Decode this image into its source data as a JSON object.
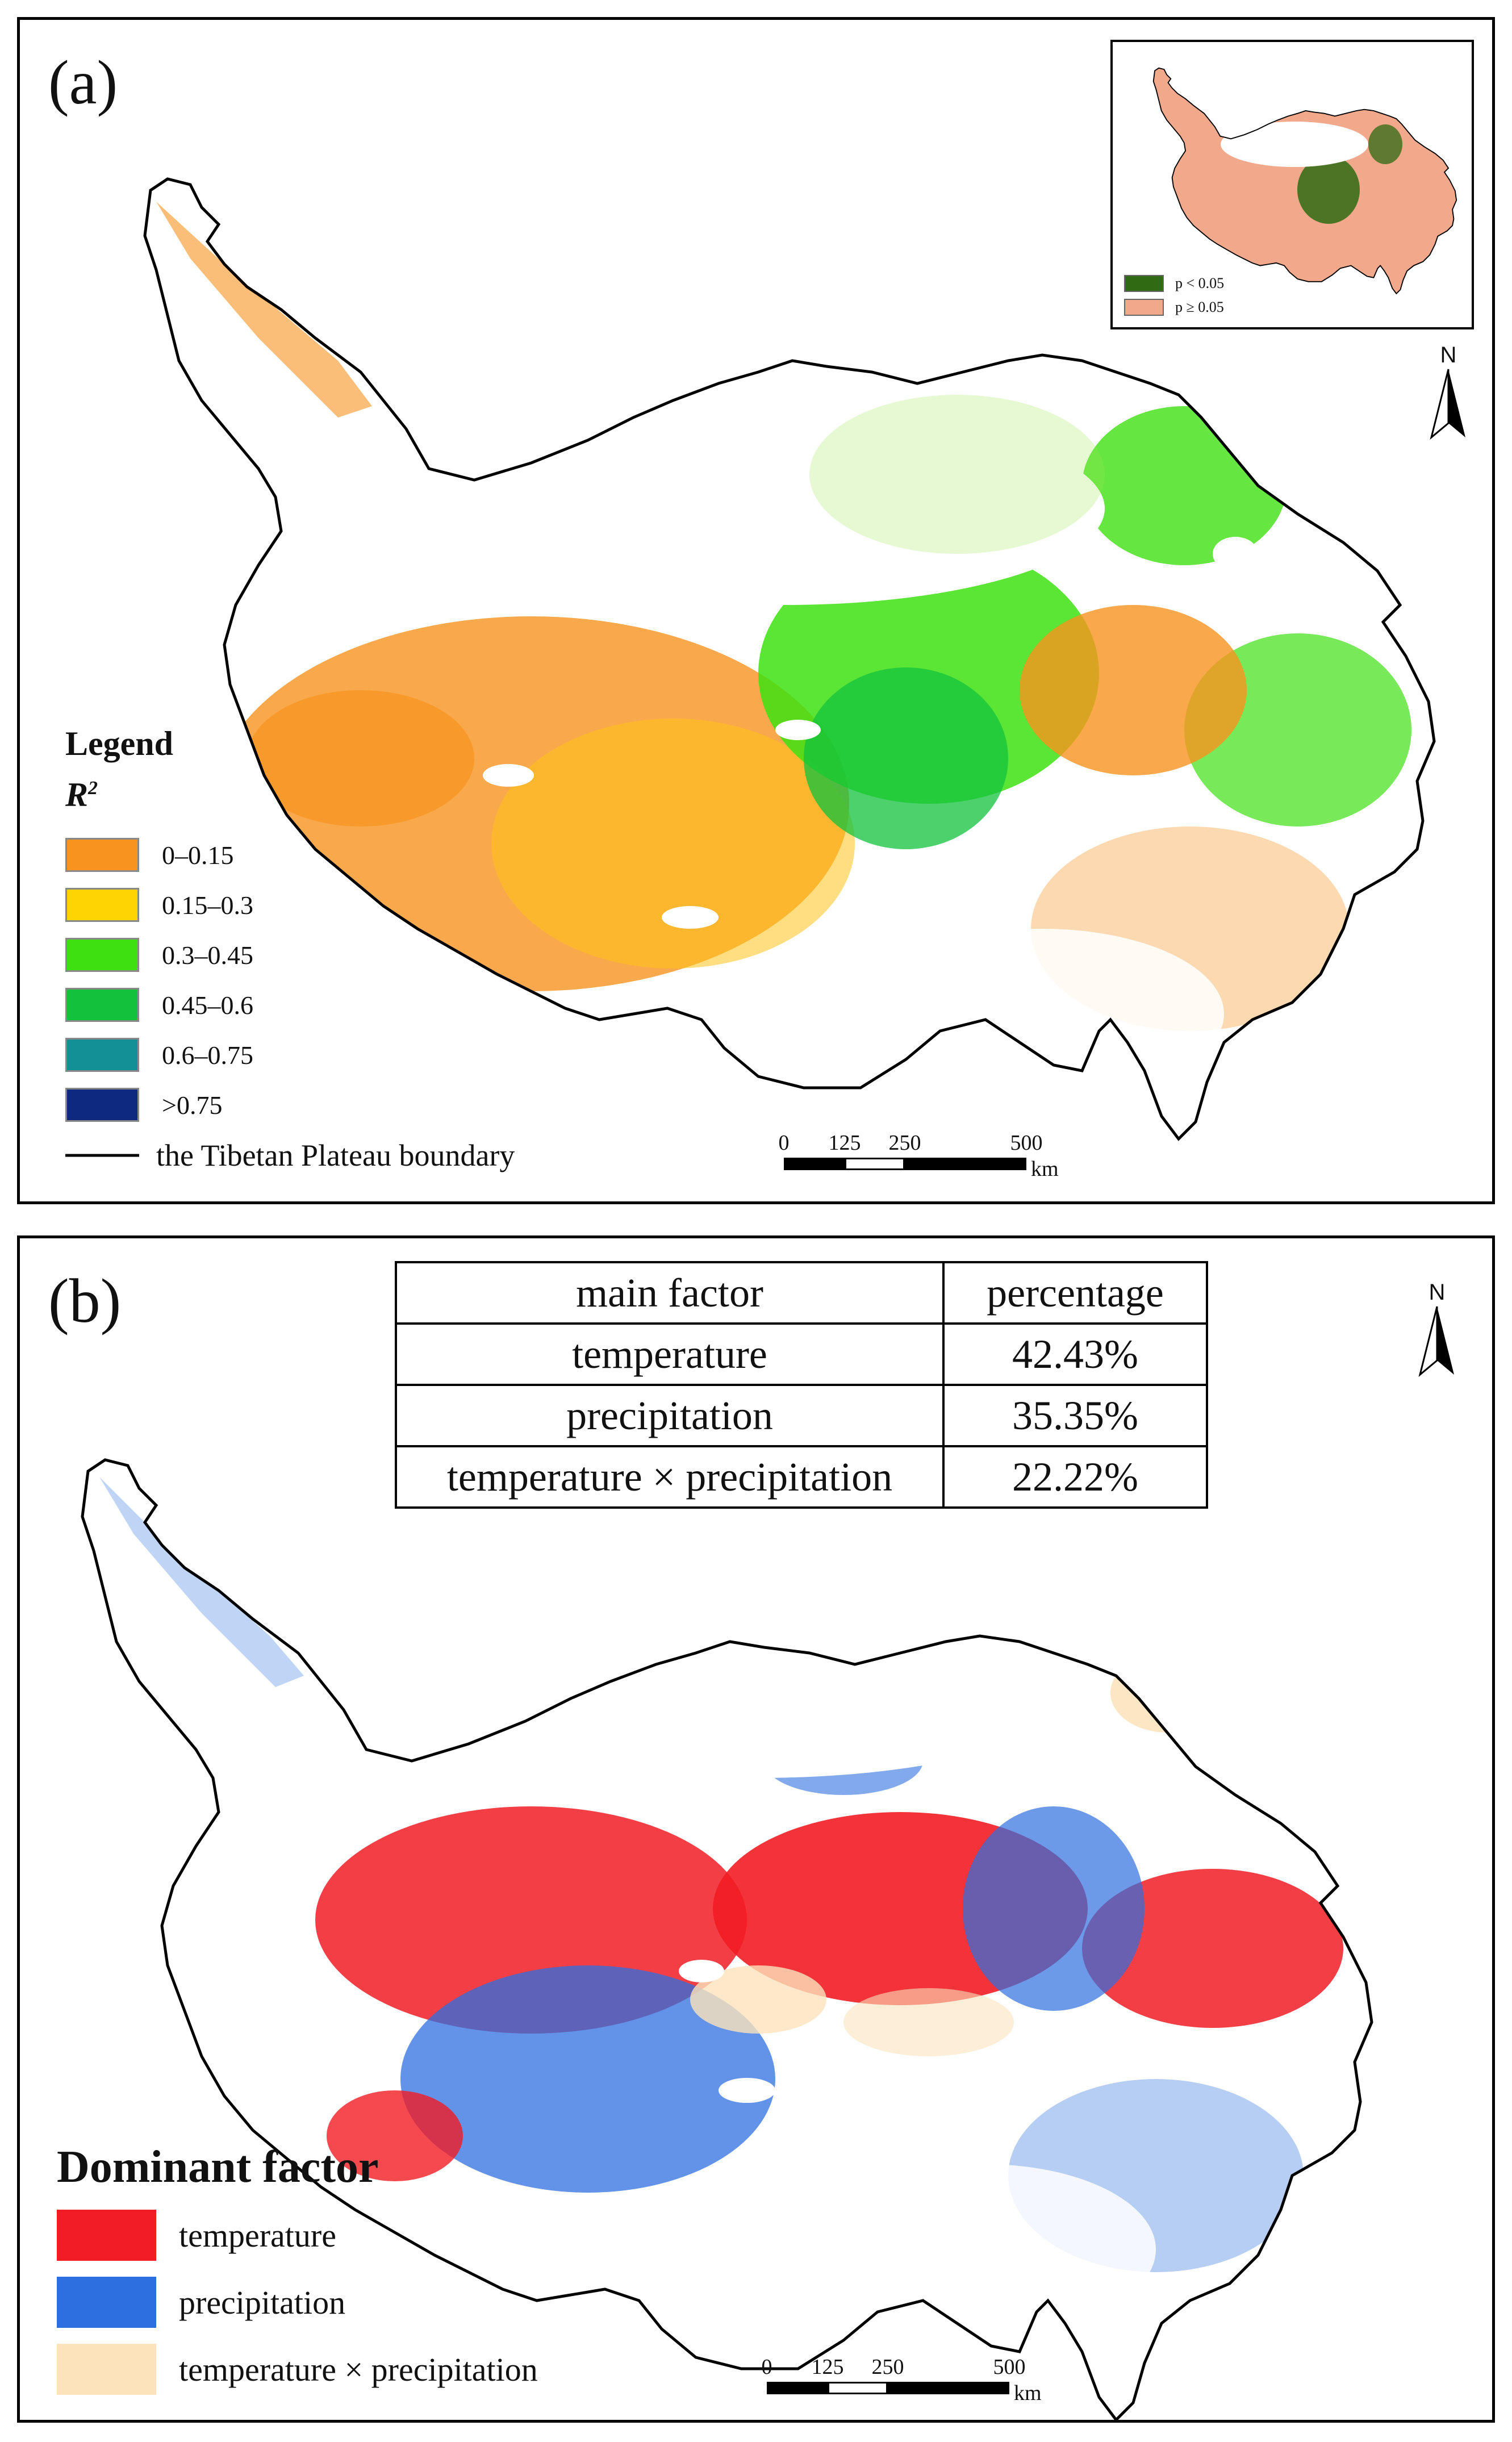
{
  "panel_a": {
    "label": "(a)",
    "legend": {
      "title": "Legend",
      "subtitle": "R",
      "subtitle_sup": "2",
      "items": [
        {
          "label": "0–0.15",
          "color": "#F7931E"
        },
        {
          "label": "0.15–0.3",
          "color": "#FFD400"
        },
        {
          "label": "0.3–0.45",
          "color": "#3EE012"
        },
        {
          "label": "0.45–0.6",
          "color": "#12C13C"
        },
        {
          "label": "0.6–0.75",
          "color": "#138F96"
        },
        {
          "label": ">0.75",
          "color": "#0D2A80"
        }
      ],
      "boundary_label": "the Tibetan Plateau boundary"
    },
    "inset": {
      "legend": [
        {
          "label": "p < 0.05",
          "color": "#2E6B12"
        },
        {
          "label": "p ≥ 0.05",
          "color": "#F2A88A"
        }
      ]
    },
    "north_label": "N",
    "scale": {
      "ticks": [
        "0",
        "125",
        "250",
        "500"
      ],
      "unit": "km"
    }
  },
  "panel_b": {
    "label": "(b)",
    "table": {
      "headers": [
        "main factor",
        "percentage"
      ],
      "rows": [
        [
          "temperature",
          "42.43%"
        ],
        [
          "precipitation",
          "35.35%"
        ],
        [
          "temperature × precipitation",
          "22.22%"
        ]
      ]
    },
    "legend": {
      "title": "Dominant factor",
      "items": [
        {
          "label": "temperature",
          "color": "#F21C24"
        },
        {
          "label": "precipitation",
          "color": "#2E6FE0"
        },
        {
          "label": "temperature × precipitation",
          "color": "#FCE3BC"
        }
      ]
    },
    "north_label": "N",
    "scale": {
      "ticks": [
        "0",
        "125",
        "250",
        "500"
      ],
      "unit": "km"
    }
  }
}
